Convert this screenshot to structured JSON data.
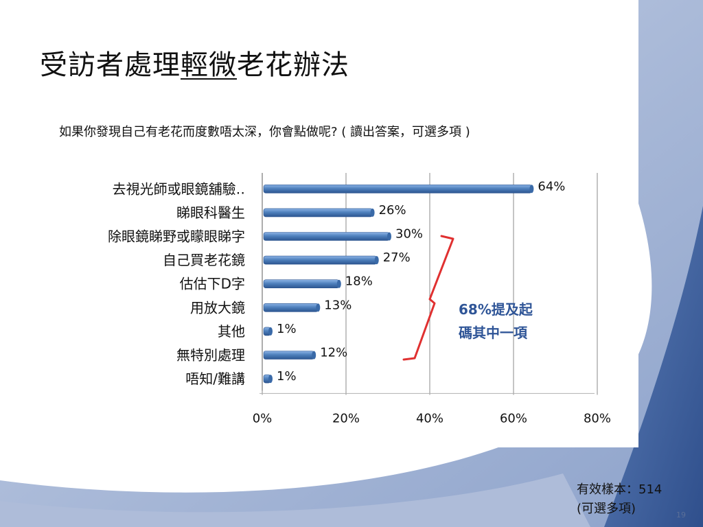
{
  "slide": {
    "title_part1": "受訪者處理",
    "title_part2": "輕微",
    "title_part3": "老花辦法",
    "question": "如果你發現自己有老花而度數唔太深，你會點做呢? ( 讀出答案，可選多項 )",
    "sample_line1": "有效樣本：514",
    "sample_line2": "(可選多項)",
    "slide_number": "19",
    "annotation_line1": "68%提及起",
    "annotation_line2": "碼其中一項"
  },
  "colors": {
    "bar_light": "#6f9fdc",
    "bar_mid": "#4f81bd",
    "bar_dark": "#2c5590",
    "bracket": "#e03030",
    "annotation_text": "#2f5597",
    "bg_blue_light": "#a9b9d8",
    "bg_blue_dark": "#3d5f9c"
  },
  "chart_data": {
    "type": "bar",
    "orientation": "horizontal",
    "categories": [
      "去視光師或眼鏡舖驗‥",
      "睇眼科醫生",
      "除眼鏡睇野或矇眼睇字",
      "自己買老花鏡",
      "估估下D字",
      "用放大鏡",
      "其他",
      "無特別處理",
      "唔知/難講"
    ],
    "values": [
      64,
      26,
      30,
      27,
      18,
      13,
      1,
      12,
      1
    ],
    "value_labels": [
      "64%",
      "26%",
      "30%",
      "27%",
      "18%",
      "13%",
      "1%",
      "12%",
      "1%"
    ],
    "xlim": [
      0,
      80
    ],
    "xticks": [
      0,
      20,
      40,
      60,
      80
    ],
    "xtick_labels": [
      "0%",
      "20%",
      "40%",
      "60%",
      "80%"
    ],
    "grid": true
  }
}
